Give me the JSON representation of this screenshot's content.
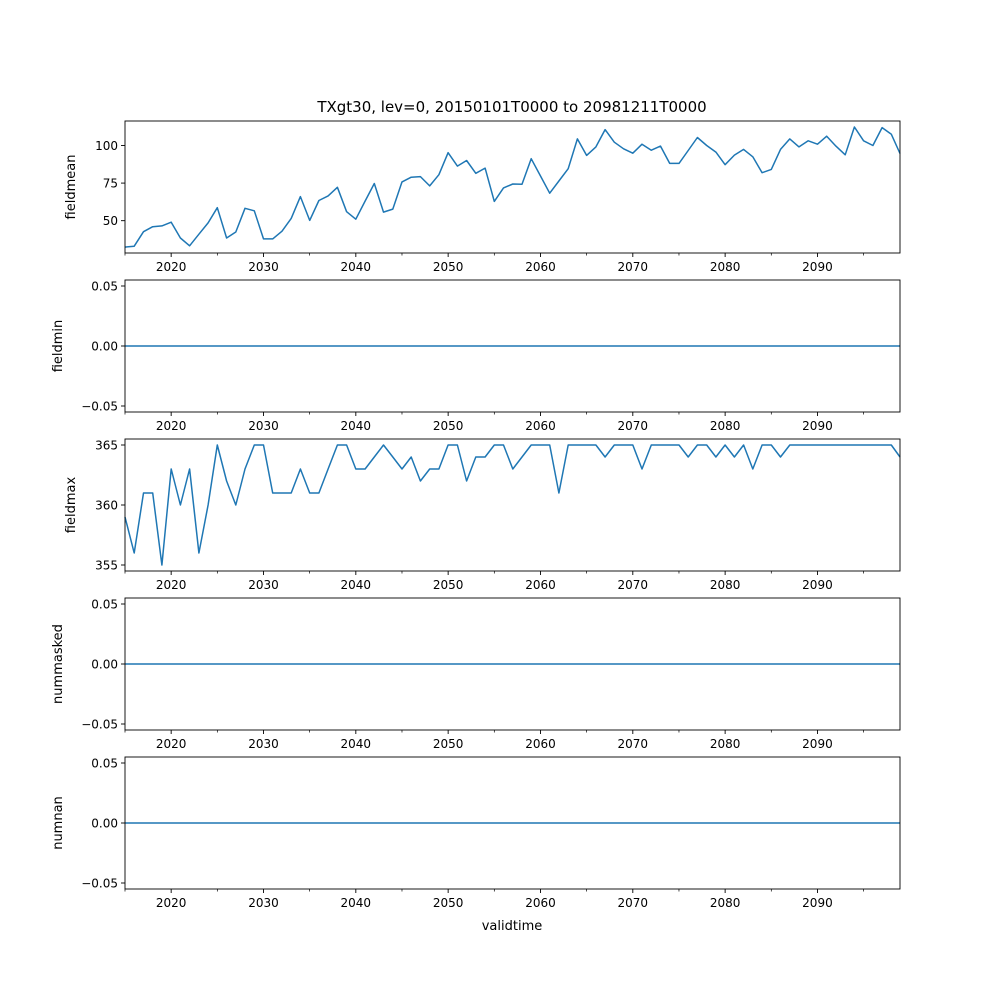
{
  "title": "TXgt30, lev=0, 20150101T0000 to 20981211T0000",
  "xlabel": "validtime",
  "line_color": "#1f77b4",
  "x_ticks": [
    2020,
    2030,
    2040,
    2050,
    2060,
    2070,
    2080,
    2090
  ],
  "x_minor_ticks": [
    2015,
    2025,
    2035,
    2045,
    2055,
    2065,
    2075,
    2085,
    2095
  ],
  "xlim": [
    2015,
    2098.94
  ],
  "x": [
    2015,
    2016,
    2017,
    2018,
    2019,
    2020,
    2021,
    2022,
    2023,
    2024,
    2025,
    2026,
    2027,
    2028,
    2029,
    2030,
    2031,
    2032,
    2033,
    2034,
    2035,
    2036,
    2037,
    2038,
    2039,
    2040,
    2041,
    2042,
    2043,
    2044,
    2045,
    2046,
    2047,
    2048,
    2049,
    2050,
    2051,
    2052,
    2053,
    2054,
    2055,
    2056,
    2057,
    2058,
    2059,
    2060,
    2061,
    2062,
    2063,
    2064,
    2065,
    2066,
    2067,
    2068,
    2069,
    2070,
    2071,
    2072,
    2073,
    2074,
    2075,
    2076,
    2077,
    2078,
    2079,
    2080,
    2081,
    2082,
    2083,
    2084,
    2085,
    2086,
    2087,
    2088,
    2089,
    2090,
    2091,
    2092,
    2093,
    2094,
    2095,
    2096,
    2097,
    2098,
    2098.94
  ],
  "chart_data": [
    {
      "type": "line",
      "ylabel": "fieldmean",
      "ylim": [
        28.5,
        116.3
      ],
      "y_ticks": [
        50,
        75,
        100
      ],
      "y_tick_labels": [
        "50",
        "75",
        "100"
      ],
      "values": [
        32.4,
        33,
        42.7,
        46,
        46.5,
        49,
        38.5,
        33.3,
        41,
        48.5,
        58.6,
        38.5,
        42.5,
        58.2,
        56.6,
        37.9,
        37.9,
        43,
        51.5,
        66,
        50.2,
        63.4,
        66.5,
        72.2,
        56,
        51,
        63,
        74.7,
        55.7,
        57.7,
        75.8,
        78.9,
        79.3,
        73.1,
        80.6,
        95.2,
        86.3,
        90,
        81.5,
        85,
        62.8,
        71.8,
        74.4,
        74.2,
        91.2,
        79.7,
        68.3,
        76.4,
        84.6,
        104.4,
        93.4,
        99.1,
        110.6,
        102.2,
        97.8,
        94.9,
        100.9,
        96.9,
        99.6,
        88.1,
        88.1,
        96.7,
        105.3,
        100,
        95.6,
        87.2,
        93.6,
        97.4,
        92.5,
        81.9,
        84.1,
        97.4,
        104.4,
        99.1,
        103.1,
        100.9,
        106.2,
        99.6,
        93.8,
        112.3,
        103.1,
        100,
        111.9,
        107.5,
        94.7
      ]
    },
    {
      "type": "line",
      "ylabel": "fieldmin",
      "ylim": [
        -0.055,
        0.055
      ],
      "y_ticks": [
        -0.05,
        0,
        0.05
      ],
      "y_tick_labels": [
        "−0.05",
        "0.00",
        "0.05"
      ],
      "constant": 0
    },
    {
      "type": "line",
      "ylabel": "fieldmax",
      "ylim": [
        354.5,
        365.5
      ],
      "y_ticks": [
        355,
        360,
        365
      ],
      "y_tick_labels": [
        "355",
        "360",
        "365"
      ],
      "values": [
        359,
        356,
        361,
        361,
        355,
        363,
        360,
        363,
        356,
        360,
        365,
        362,
        360,
        363,
        365,
        365,
        361,
        361,
        361,
        363,
        361,
        361,
        363,
        365,
        365,
        363,
        363,
        364,
        365,
        364,
        363,
        364,
        362,
        363,
        363,
        365,
        365,
        362,
        364,
        364,
        365,
        365,
        363,
        364,
        365,
        365,
        365,
        361,
        365,
        365,
        365,
        365,
        364,
        365,
        365,
        365,
        363,
        365,
        365,
        365,
        365,
        364,
        365,
        365,
        364,
        365,
        364,
        365,
        363,
        365,
        365,
        364,
        365,
        365,
        365,
        365,
        365,
        365,
        365,
        365,
        365,
        365,
        365,
        365,
        364
      ]
    },
    {
      "type": "line",
      "ylabel": "nummasked",
      "ylim": [
        -0.055,
        0.055
      ],
      "y_ticks": [
        -0.05,
        0,
        0.05
      ],
      "y_tick_labels": [
        "−0.05",
        "0.00",
        "0.05"
      ],
      "constant": 0
    },
    {
      "type": "line",
      "ylabel": "numnan",
      "ylim": [
        -0.055,
        0.055
      ],
      "y_ticks": [
        -0.05,
        0,
        0.05
      ],
      "y_tick_labels": [
        "−0.05",
        "0.00",
        "0.05"
      ],
      "constant": 0
    }
  ]
}
